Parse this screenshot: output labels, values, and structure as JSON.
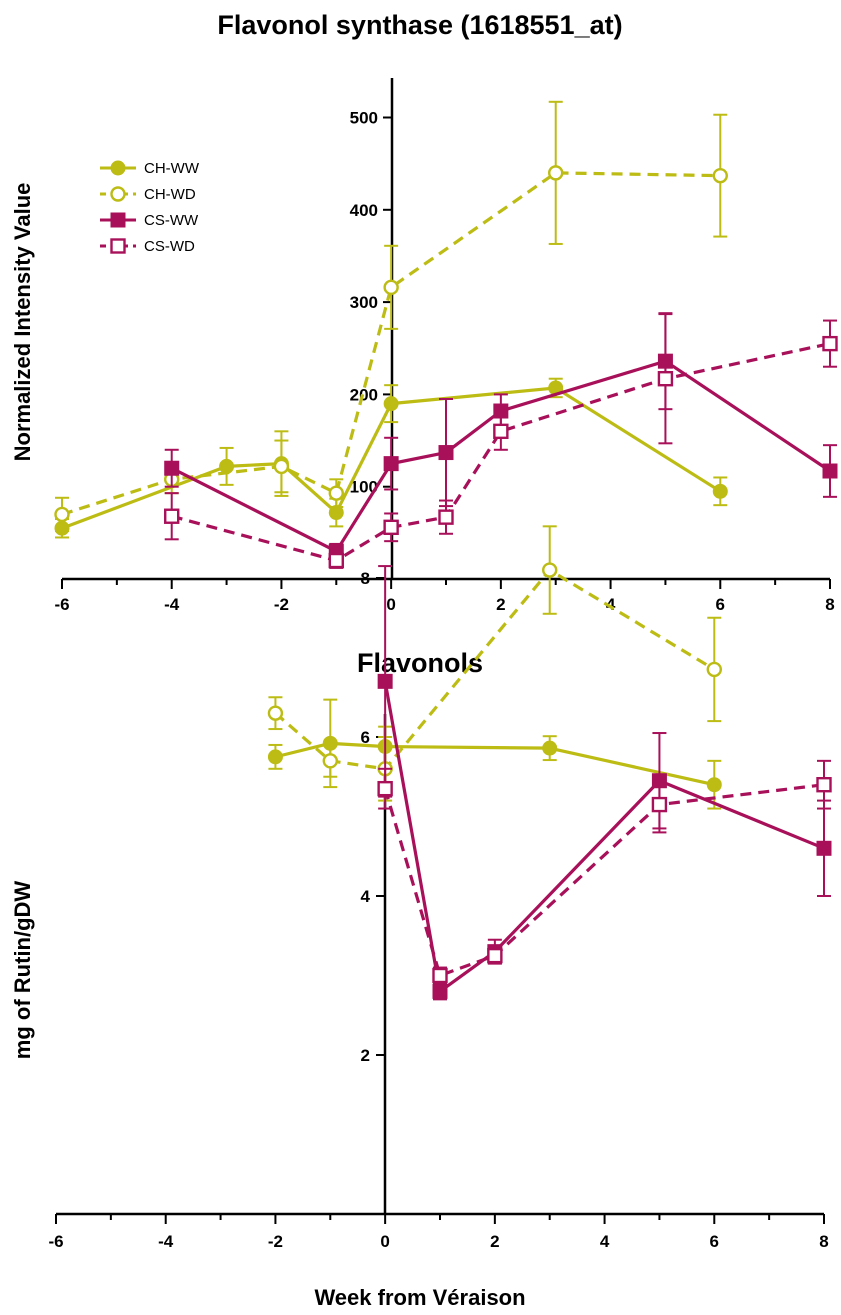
{
  "chart_data": [
    {
      "type": "line",
      "title": "Flavonol synthase (1618551_at)",
      "xlabel": "",
      "ylabel": "Normalized Intensity Value",
      "xlim": [
        -6,
        8
      ],
      "ylim": [
        0,
        550
      ],
      "xticks": [
        -6,
        -4,
        -2,
        0,
        2,
        4,
        6,
        8
      ],
      "yticks": [
        100,
        200,
        300,
        400,
        500
      ],
      "legend": "top-left",
      "series": [
        {
          "name": "CH-WW",
          "color": "#bcbc14",
          "marker": "circle-filled",
          "dash": false,
          "x": [
            -6,
            -3,
            -2,
            -1,
            0,
            3,
            6
          ],
          "y": [
            55,
            122,
            125,
            72,
            190,
            207,
            95
          ],
          "err": [
            10,
            20,
            35,
            15,
            20,
            10,
            15
          ]
        },
        {
          "name": "CH-WD",
          "color": "#bcbc14",
          "marker": "circle-open",
          "dash": true,
          "x": [
            -6,
            -4,
            -2,
            -1,
            0,
            3,
            6
          ],
          "y": [
            70,
            108,
            122,
            93,
            316,
            440,
            437
          ],
          "err": [
            18,
            15,
            28,
            15,
            45,
            77,
            66
          ]
        },
        {
          "name": "CS-WW",
          "color": "#a8105a",
          "marker": "square-filled",
          "dash": false,
          "x": [
            -4,
            -1,
            0,
            1,
            2,
            5,
            8
          ],
          "y": [
            120,
            30,
            125,
            137,
            182,
            236,
            117
          ],
          "err": [
            20,
            8,
            28,
            58,
            18,
            52,
            28
          ]
        },
        {
          "name": "CS-WD",
          "color": "#a8105a",
          "marker": "square-open",
          "dash": true,
          "x": [
            -4,
            -1,
            0,
            1,
            2,
            5,
            8
          ],
          "y": [
            68,
            20,
            56,
            67,
            160,
            217,
            255
          ],
          "err": [
            25,
            8,
            15,
            18,
            20,
            70,
            25
          ]
        }
      ]
    },
    {
      "type": "line",
      "title": "Flavonols",
      "xlabel": "Week from Véraison",
      "ylabel": "mg of Rutin/gDW",
      "xlim": [
        -6,
        8
      ],
      "ylim": [
        0,
        9.5
      ],
      "xticks": [
        -6,
        -4,
        -2,
        0,
        2,
        4,
        6,
        8
      ],
      "yticks": [
        2,
        4,
        6,
        8
      ],
      "series": [
        {
          "name": "CH-WW",
          "color": "#bcbc14",
          "marker": "circle-filled",
          "dash": false,
          "x": [
            -2,
            -1,
            0,
            3,
            6
          ],
          "y": [
            5.75,
            5.92,
            5.88,
            5.86,
            5.4
          ],
          "err": [
            0.15,
            0.55,
            0.25,
            0.15,
            0.3
          ]
        },
        {
          "name": "CH-WD",
          "color": "#bcbc14",
          "marker": "circle-open",
          "dash": true,
          "x": [
            -2,
            -1,
            0,
            3,
            6
          ],
          "y": [
            6.3,
            5.7,
            5.6,
            8.1,
            6.85
          ],
          "err": [
            0.2,
            0.2,
            0.4,
            0.55,
            0.65
          ]
        },
        {
          "name": "CS-WW",
          "color": "#a8105a",
          "marker": "square-filled",
          "dash": false,
          "x": [
            0,
            1,
            2,
            5,
            8
          ],
          "y": [
            6.7,
            2.8,
            3.3,
            5.45,
            4.6
          ],
          "err": [
            1.45,
            0.1,
            0.15,
            0.6,
            0.6
          ]
        },
        {
          "name": "CS-WD",
          "color": "#a8105a",
          "marker": "square-open",
          "dash": true,
          "x": [
            0,
            1,
            2,
            5,
            8
          ],
          "y": [
            5.35,
            3.0,
            3.25,
            5.15,
            5.4
          ],
          "err": [
            0.25,
            0.1,
            0.1,
            0.35,
            0.3
          ]
        }
      ]
    }
  ]
}
